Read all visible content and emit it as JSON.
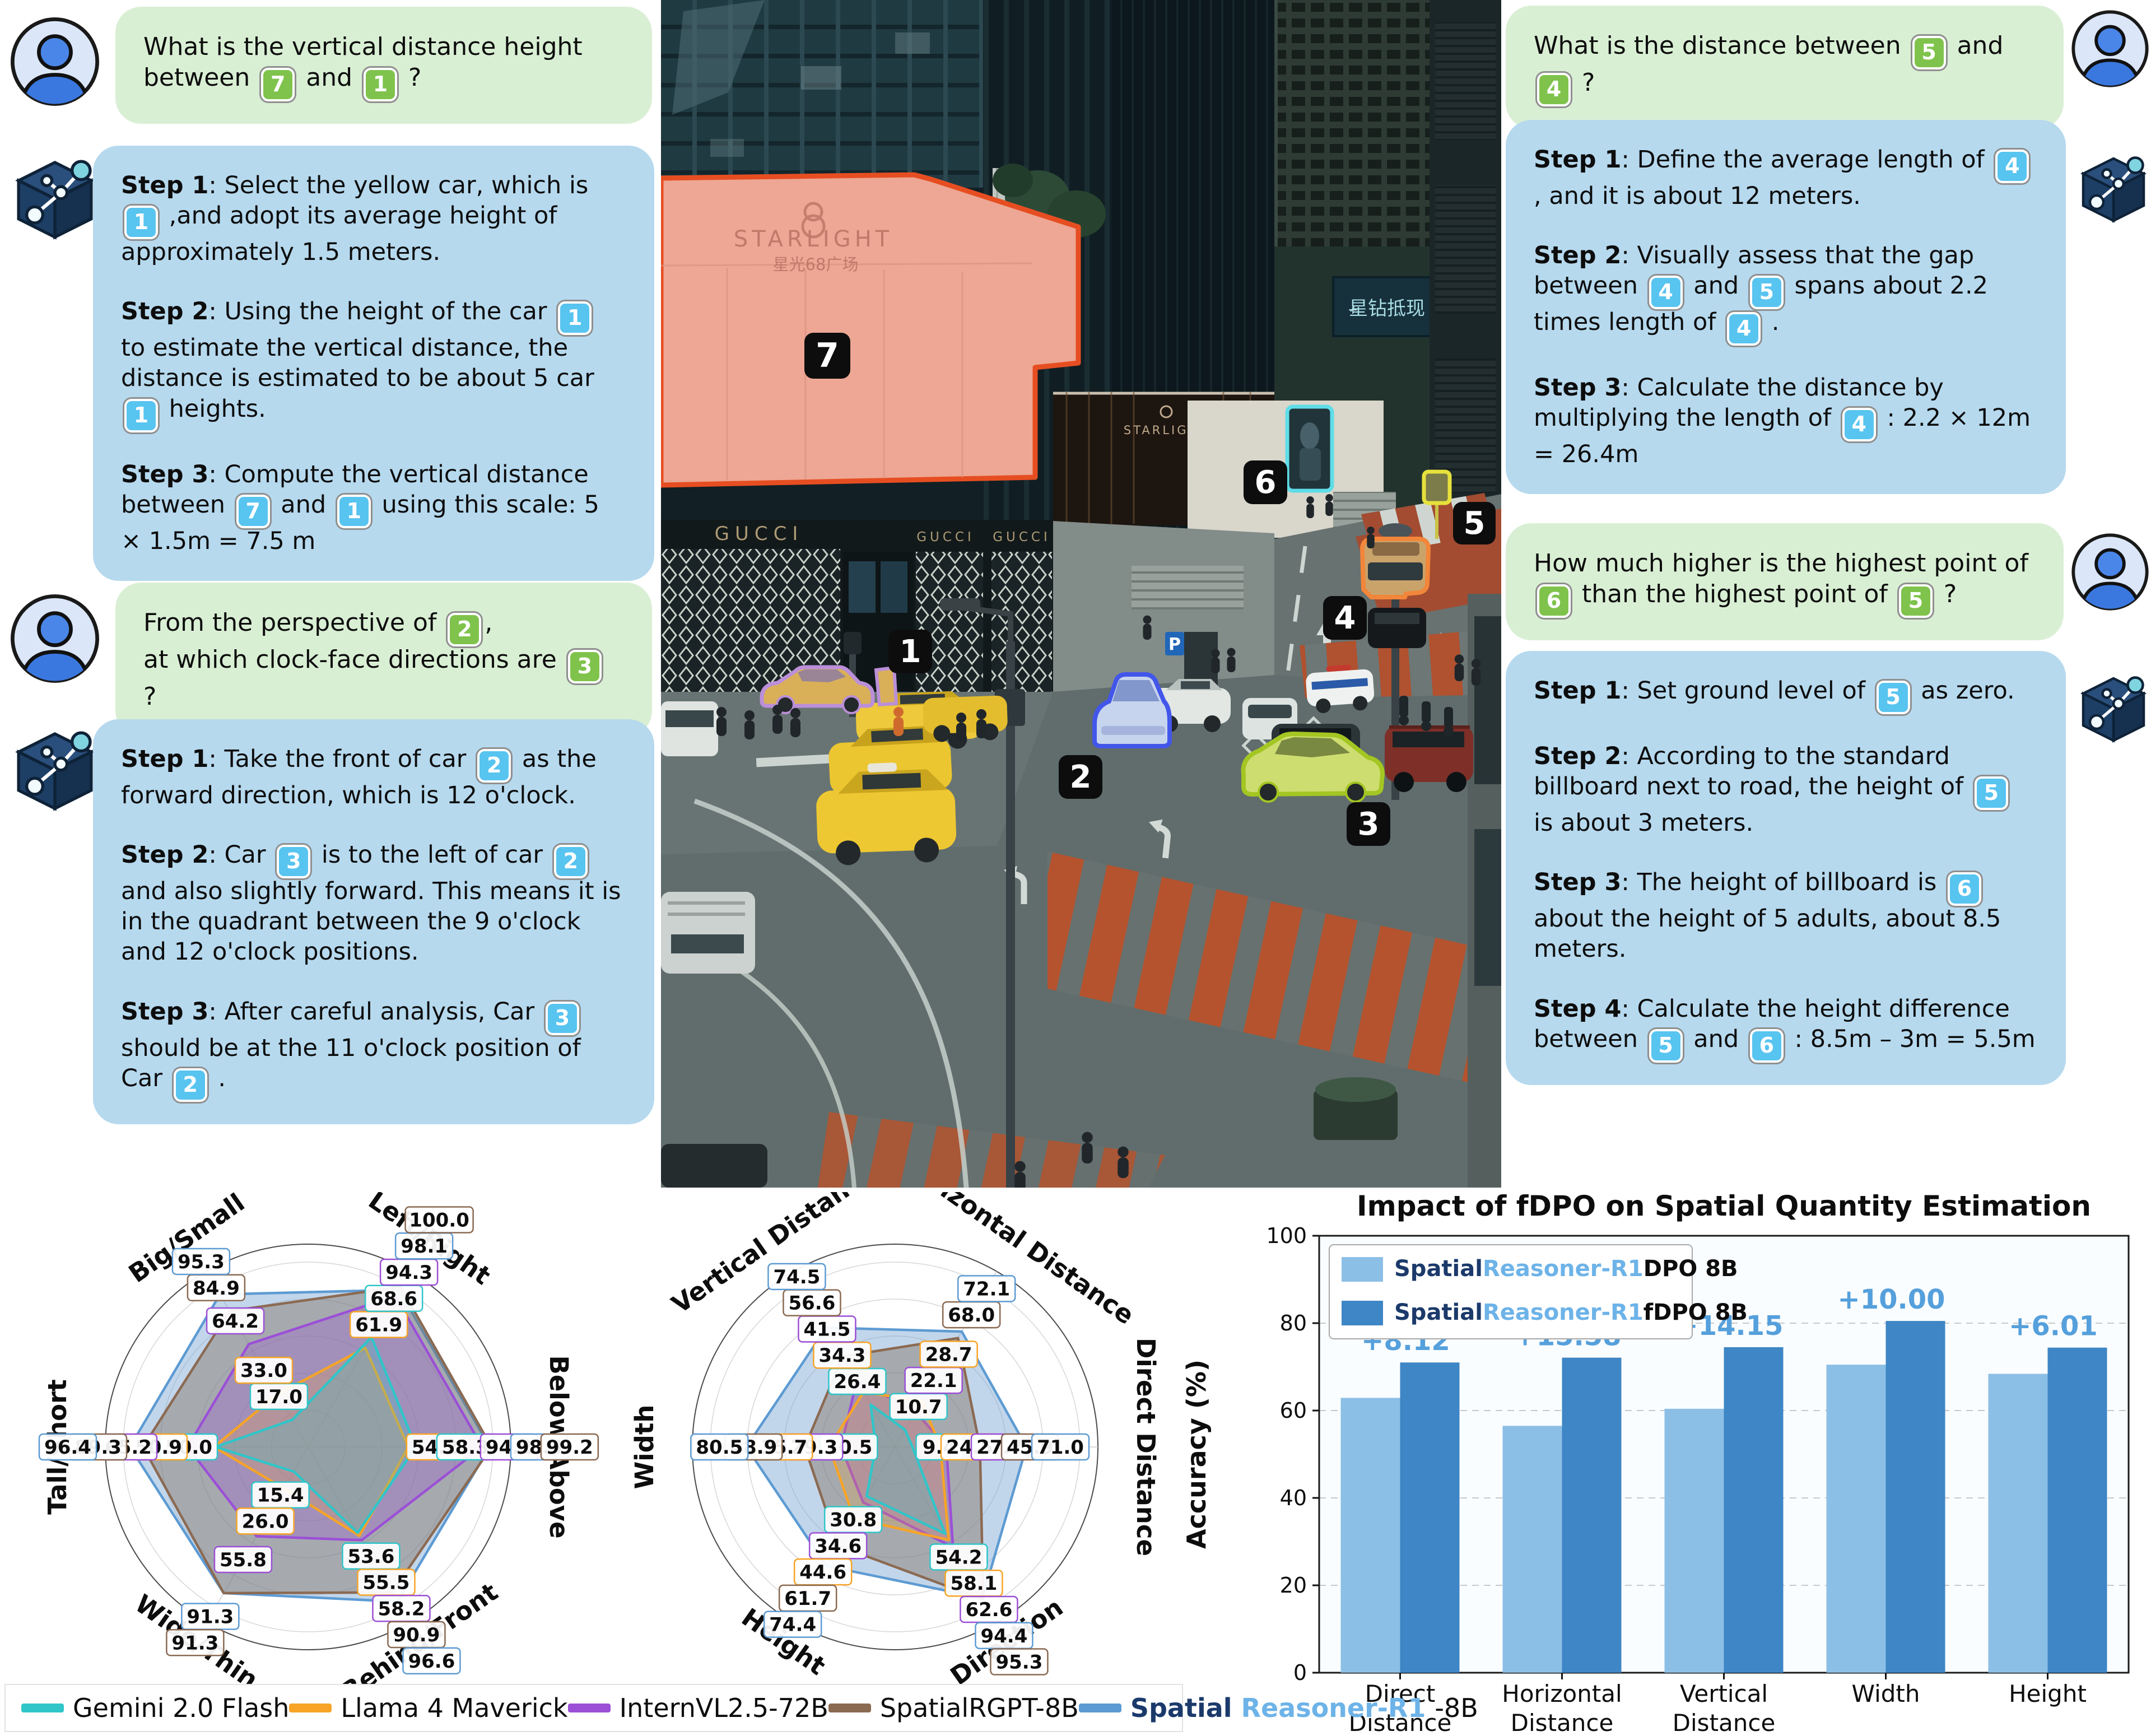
{
  "chat": {
    "left": {
      "q1": {
        "paras": [
          [
            {
              "t": "What is the vertical distance height between "
            },
            {
              "b": "7",
              "c": "g"
            },
            {
              "t": " and "
            },
            {
              "b": "1",
              "c": "g"
            },
            {
              "t": " ?"
            }
          ]
        ]
      },
      "a1": {
        "paras": [
          [
            {
              "t": "Step 1",
              "bold": true
            },
            {
              "t": ": Select the yellow car, which is "
            },
            {
              "b": "1",
              "c": "b"
            },
            {
              "t": " ,and adopt its average height of approximately 1.5 meters."
            }
          ],
          [
            {
              "t": "Step 2",
              "bold": true
            },
            {
              "t": ": Using the height of the car "
            },
            {
              "b": "1",
              "c": "b"
            },
            {
              "t": " to estimate the vertical distance, the distance is estimated to be about 5 car "
            },
            {
              "b": "1",
              "c": "b"
            },
            {
              "t": " heights."
            }
          ],
          [
            {
              "t": "Step 3",
              "bold": true
            },
            {
              "t": ": Compute the vertical distance between "
            },
            {
              "b": "7",
              "c": "b"
            },
            {
              "t": " and "
            },
            {
              "b": "1",
              "c": "b"
            },
            {
              "t": " using this scale: 5 × 1.5m = 7.5 m"
            }
          ]
        ]
      },
      "q2": {
        "paras": [
          [
            {
              "t": "From the perspective of "
            },
            {
              "b": "2",
              "c": "g"
            },
            {
              "t": ","
            },
            {
              "nl": true
            },
            {
              "t": "at which clock-face directions are "
            },
            {
              "b": "3",
              "c": "g"
            },
            {
              "t": " ?"
            }
          ]
        ]
      },
      "a2": {
        "paras": [
          [
            {
              "t": "Step 1",
              "bold": true
            },
            {
              "t": ": Take the front of car "
            },
            {
              "b": "2",
              "c": "b"
            },
            {
              "t": " as the forward direction, which is 12 o'clock."
            }
          ],
          [
            {
              "t": "Step 2",
              "bold": true
            },
            {
              "t": ": Car "
            },
            {
              "b": "3",
              "c": "b"
            },
            {
              "t": " is to the left of car "
            },
            {
              "b": "2",
              "c": "b"
            },
            {
              "t": " and also slightly forward. This means it is in the quadrant between the 9 o'clock and 12 o'clock positions."
            }
          ],
          [
            {
              "t": "Step 3",
              "bold": true
            },
            {
              "t": ": After careful analysis, Car "
            },
            {
              "b": "3",
              "c": "b"
            },
            {
              "t": " should be at the 11 o'clock position of Car "
            },
            {
              "b": "2",
              "c": "b"
            },
            {
              "t": " ."
            }
          ]
        ]
      }
    },
    "right": {
      "q1": {
        "paras": [
          [
            {
              "t": "What is the distance between "
            },
            {
              "b": "5",
              "c": "g"
            },
            {
              "t": " and "
            },
            {
              "b": "4",
              "c": "g"
            },
            {
              "t": " ?"
            }
          ]
        ]
      },
      "a1": {
        "paras": [
          [
            {
              "t": "Step 1",
              "bold": true
            },
            {
              "t": ": Define the average length of "
            },
            {
              "b": "4",
              "c": "b"
            },
            {
              "t": " , and it is about 12 meters."
            }
          ],
          [
            {
              "t": "Step 2",
              "bold": true
            },
            {
              "t": ": Visually assess that the gap between "
            },
            {
              "b": "4",
              "c": "b"
            },
            {
              "t": " and "
            },
            {
              "b": "5",
              "c": "b"
            },
            {
              "t": " spans about 2.2 times length of "
            },
            {
              "b": "4",
              "c": "b"
            },
            {
              "t": " ."
            }
          ],
          [
            {
              "t": "Step 3",
              "bold": true
            },
            {
              "t": ": Calculate the distance by multiplying the length of "
            },
            {
              "b": "4",
              "c": "b"
            },
            {
              "t": " : 2.2 × 12m = 26.4m"
            }
          ]
        ]
      },
      "q2": {
        "paras": [
          [
            {
              "t": "How much higher is the highest point of "
            },
            {
              "b": "6",
              "c": "g"
            },
            {
              "t": " than the highest point of "
            },
            {
              "b": "5",
              "c": "g"
            },
            {
              "t": " ?"
            }
          ]
        ]
      },
      "a2": {
        "paras": [
          [
            {
              "t": "Step 1",
              "bold": true
            },
            {
              "t": ": Set ground level of "
            },
            {
              "b": "5",
              "c": "b"
            },
            {
              "t": " as zero."
            }
          ],
          [
            {
              "t": "Step 2",
              "bold": true
            },
            {
              "t": ": According to the standard billboard next to road, the height of "
            },
            {
              "b": "5",
              "c": "b"
            },
            {
              "t": " is about 3 meters."
            }
          ],
          [
            {
              "t": "Step 3",
              "bold": true
            },
            {
              "t": ": The height of billboard  is "
            },
            {
              "b": "6",
              "c": "b"
            },
            {
              "t": " about the height of 5 adults, about 8.5 meters."
            }
          ],
          [
            {
              "t": "Step 4",
              "bold": true
            },
            {
              "t": ": Calculate the height difference between "
            },
            {
              "b": "5",
              "c": "b"
            },
            {
              "t": " and "
            },
            {
              "b": "6",
              "c": "b"
            },
            {
              "t": " : 8.5m – 3m = 5.5m"
            }
          ]
        ]
      }
    }
  },
  "photo": {
    "labels": [
      {
        "digit": "1"
      },
      {
        "digit": "2"
      },
      {
        "digit": "3"
      },
      {
        "digit": "4"
      },
      {
        "digit": "5"
      },
      {
        "digit": "6"
      },
      {
        "digit": "7"
      }
    ],
    "signs": {
      "starlight": "STARLIGHT",
      "starlight_cn": "星光68广场",
      "gucci": "GUCCI",
      "billboard_cn": "星钻抵现",
      "mall": "STARLIGHT",
      "parking": "P"
    }
  },
  "model_legend": {
    "items": [
      {
        "color": "#2fc5c9",
        "parts": [
          {
            "t": "Gemini 2.0 Flash"
          }
        ]
      },
      {
        "color": "#f7a427",
        "parts": [
          {
            "t": "Llama 4 Maverick"
          }
        ]
      },
      {
        "color": "#9b4fd6",
        "parts": [
          {
            "t": "InternVL2.5-72B"
          }
        ]
      },
      {
        "color": "#8b6a52",
        "parts": [
          {
            "t": "SpatialRGPT-8B"
          }
        ]
      },
      {
        "color": "#5d9bd3",
        "parts": [
          {
            "t": "Spatial",
            "cls": "navy"
          },
          {
            "t": "Reasoner-R1",
            "cls": "lblue"
          },
          {
            "t": "-8B"
          }
        ]
      }
    ]
  },
  "chart_data": [
    {
      "type": "radar",
      "id": "radar-left",
      "rmax": 100,
      "grid": true,
      "axes": [
        {
          "label": "Big/Small",
          "angle": 120,
          "rot": -35
        },
        {
          "label": "Left/Right",
          "angle": 60,
          "rot": 35
        },
        {
          "label": "Below/Above",
          "angle": 0,
          "rot": 90
        },
        {
          "label": "Behind/Front",
          "angle": -60,
          "rot": -35
        },
        {
          "label": "Wide/Thin",
          "angle": -120,
          "rot": 35
        },
        {
          "label": "Tall/Short",
          "angle": 180,
          "rot": -90
        }
      ],
      "series": [
        {
          "name": "SpatialReasoner-R1-8B",
          "color": "#5d9bd3",
          "fill": "rgba(120,165,210,0.45)",
          "values": [
            95.3,
            98.1,
            98.3,
            96.6,
            91.3,
            96.4
          ]
        },
        {
          "name": "SpatialRGPT-8B",
          "color": "#8b6a52",
          "fill": "rgba(125,105,85,0.40)",
          "values": [
            84.9,
            100.0,
            99.2,
            90.9,
            91.3,
            89.3
          ]
        },
        {
          "name": "InternVL2.5-72B",
          "color": "#9b4fd6",
          "fill": "rgba(155,79,214,0.28)",
          "values": [
            64.2,
            94.3,
            94.2,
            58.2,
            55.8,
            65.2
          ]
        },
        {
          "name": "Llama 4 Maverick",
          "color": "#f7a427",
          "fill": "rgba(247,164,39,0.22)",
          "values": [
            33.0,
            61.9,
            54.2,
            55.5,
            26.0,
            50.9
          ]
        },
        {
          "name": "Gemini 2.0 Flash",
          "color": "#2fc5c9",
          "fill": "rgba(47,197,201,0.25)",
          "values": [
            17.0,
            68.6,
            58.3,
            53.6,
            15.4,
            50.0
          ]
        }
      ]
    },
    {
      "type": "radar",
      "id": "radar-mid",
      "rmax": 100,
      "grid": true,
      "axes": [
        {
          "label": "Vertical Distance",
          "angle": 120,
          "rot": -35
        },
        {
          "label": "Horizontal Distance",
          "angle": 60,
          "rot": 35
        },
        {
          "label": "Direct Distance",
          "angle": 0,
          "rot": 90
        },
        {
          "label": "Direction",
          "angle": -60,
          "rot": -35
        },
        {
          "label": "Height",
          "angle": -120,
          "rot": 35
        },
        {
          "label": "Width",
          "angle": 180,
          "rot": -90
        }
      ],
      "series": [
        {
          "name": "SpatialReasoner-R1-8B",
          "color": "#5d9bd3",
          "fill": "rgba(120,165,210,0.45)",
          "values": [
            74.5,
            72.1,
            71.0,
            94.4,
            74.4,
            80.5
          ]
        },
        {
          "name": "SpatialRGPT-8B",
          "color": "#8b6a52",
          "fill": "rgba(125,105,85,0.40)",
          "values": [
            56.6,
            68.0,
            45.9,
            95.3,
            61.7,
            48.9
          ]
        },
        {
          "name": "InternVL2.5-72B",
          "color": "#9b4fd6",
          "fill": "rgba(155,79,214,0.28)",
          "values": [
            41.5,
            22.1,
            27.7,
            62.6,
            34.6,
            29.3
          ]
        },
        {
          "name": "Llama 4 Maverick",
          "color": "#f7a427",
          "fill": "rgba(247,164,39,0.22)",
          "values": [
            34.3,
            28.7,
            24.5,
            58.1,
            44.6,
            35.7
          ]
        },
        {
          "name": "Gemini 2.0 Flash",
          "color": "#2fc5c9",
          "fill": "rgba(47,197,201,0.25)",
          "values": [
            26.4,
            10.7,
            9.4,
            54.2,
            30.8,
            10.5
          ]
        }
      ]
    },
    {
      "type": "bar",
      "title": "Impact of fDPO on Spatial Quantity Estimation",
      "ylabel": "Accuracy (%)",
      "ylim": [
        0,
        100
      ],
      "yticks": [
        0,
        20,
        40,
        60,
        80,
        100
      ],
      "categories": [
        [
          "Direct",
          "Distance"
        ],
        [
          "Horizontal",
          "Distance"
        ],
        [
          "Vertical",
          "Distance"
        ],
        [
          "Width"
        ],
        [
          "Height"
        ]
      ],
      "series": [
        {
          "name_parts": [
            {
              "t": "Spatial",
              "cls": "navy"
            },
            {
              "t": "Reasoner-R1",
              "cls": "lblue"
            },
            {
              "t": "DPO 8B"
            }
          ],
          "color": "#8cbfe6",
          "values": [
            62.9,
            56.5,
            60.4,
            70.5,
            68.4
          ]
        },
        {
          "name_parts": [
            {
              "t": "Spatial",
              "cls": "navy"
            },
            {
              "t": "Reasoner-R1",
              "cls": "lblue"
            },
            {
              "t": "fDPO 8B"
            }
          ],
          "color": "#3e86c5",
          "values": [
            71.0,
            72.1,
            74.5,
            80.5,
            74.4
          ]
        }
      ],
      "annotations": [
        "+8.12",
        "+15.58",
        "+14.15",
        "+10.00",
        "+6.01"
      ],
      "annotation_color": "#55a0dc"
    }
  ]
}
